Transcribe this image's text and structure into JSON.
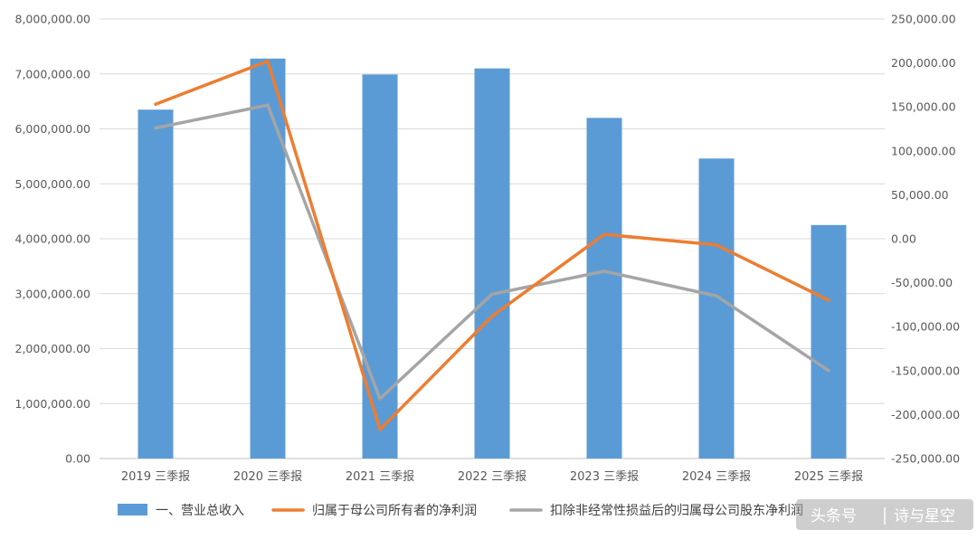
{
  "chart_data": {
    "type": "bar",
    "categories": [
      "2019 三季报",
      "2020 三季报",
      "2021 三季报",
      "2022 三季报",
      "2023 三季报",
      "2024 三季报",
      "2025 三季报"
    ],
    "series": [
      {
        "name": "一、营业总收入",
        "kind": "bar",
        "axis": "left",
        "color": "#5b9bd5",
        "values": [
          6350000,
          7280000,
          6990000,
          7100000,
          6200000,
          5460000,
          4250000
        ]
      },
      {
        "name": "归属于母公司所有者的净利润",
        "kind": "line",
        "axis": "right",
        "color": "#ed7d31",
        "values": [
          153000,
          202000,
          -217000,
          -88000,
          5000,
          -7000,
          -70000
        ]
      },
      {
        "name": "扣除非经常性损益后的归属母公司股东净利润",
        "kind": "line",
        "axis": "right",
        "color": "#a5a5a5",
        "values": [
          126000,
          152000,
          -182000,
          -63000,
          -37000,
          -65000,
          -150000
        ]
      }
    ],
    "left_axis": {
      "min": 0,
      "max": 8000000,
      "step": 1000000,
      "tick_labels": [
        "0.00",
        "1,000,000.00",
        "2,000,000.00",
        "3,000,000.00",
        "4,000,000.00",
        "5,000,000.00",
        "6,000,000.00",
        "7,000,000.00",
        "8,000,000.00"
      ]
    },
    "right_axis": {
      "min": -250000,
      "max": 250000,
      "step": 50000,
      "tick_labels": [
        "-250,000.00",
        "-200,000.00",
        "-150,000.00",
        "-100,000.00",
        "-50,000.00",
        "0.00",
        "50,000.00",
        "100,000.00",
        "150,000.00",
        "200,000.00",
        "250,000.00"
      ]
    },
    "grid": true,
    "legend_position": "bottom",
    "title": "",
    "xlabel": "",
    "ylabel": ""
  },
  "legend": {
    "revenue": "一、营业总收入",
    "net_profit": "归属于母公司所有者的净利润",
    "deducted_net_profit": "扣除非经常性损益后的归属母公司股东净利润"
  },
  "watermark": {
    "text": "诗与星空",
    "platform_label": "头条号"
  }
}
